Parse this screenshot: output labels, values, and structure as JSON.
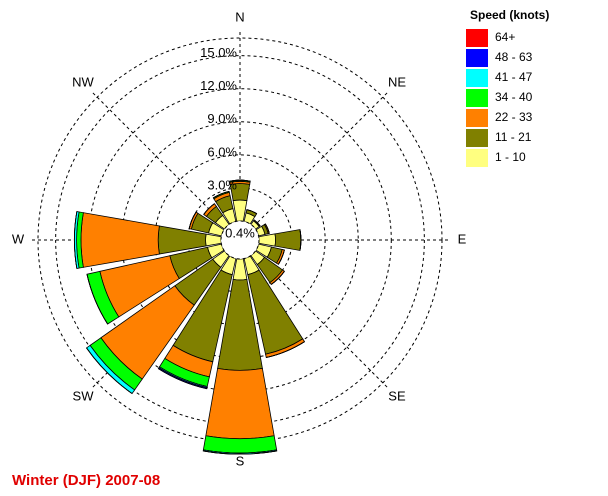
{
  "chart_data": {
    "type": "windrose",
    "title": "Winter (DJF) 2007-08",
    "legend_title": "Speed (knots)",
    "directions": [
      "N",
      "NNE",
      "NE",
      "ENE",
      "E",
      "ESE",
      "SE",
      "SSE",
      "S",
      "SSW",
      "SW",
      "WSW",
      "W",
      "WNW",
      "NW",
      "NNW"
    ],
    "direction_labels": [
      "N",
      "NE",
      "E",
      "SE",
      "S",
      "SW",
      "W",
      "NW"
    ],
    "calm": {
      "value": 0.4,
      "label": "0.4%"
    },
    "rlim": [
      0,
      16.6
    ],
    "rticks": [
      {
        "value": 3,
        "label": "3.0%"
      },
      {
        "value": 6,
        "label": "6.0%"
      },
      {
        "value": 9,
        "label": "9.0%"
      },
      {
        "value": 12,
        "label": "12.0%"
      },
      {
        "value": 15,
        "label": "15.0%"
      }
    ],
    "grid": true,
    "series": [
      {
        "name": "1 - 10",
        "color": "#ffff80",
        "values": [
          1.9,
          0.8,
          0.4,
          0.6,
          1.5,
          1.2,
          1.0,
          1.5,
          1.9,
          1.5,
          1.3,
          1.3,
          1.4,
          1.2,
          1.0,
          1.2
        ]
      },
      {
        "name": "11 - 21",
        "color": "#808000",
        "values": [
          1.5,
          0.3,
          0.1,
          0.3,
          2.3,
          1.0,
          2.0,
          7.4,
          8.2,
          8.1,
          4.2,
          3.5,
          4.3,
          1.6,
          1.0,
          1.2
        ]
      },
      {
        "name": "22 - 33",
        "color": "#ff8000",
        "values": [
          0.2,
          0,
          0,
          0.1,
          0,
          0.2,
          0.2,
          0.3,
          6.2,
          1.4,
          8.2,
          6.5,
          7.0,
          0.2,
          0.3,
          0.3
        ]
      },
      {
        "name": "34 - 40",
        "color": "#00ff00",
        "values": [
          0.1,
          0,
          0,
          0,
          0,
          0,
          0,
          0,
          1.3,
          0.9,
          1.2,
          1.2,
          0.4,
          0,
          0,
          0.1
        ]
      },
      {
        "name": "41 - 47",
        "color": "#00ffff",
        "values": [
          0,
          0,
          0,
          0,
          0,
          0,
          0,
          0,
          0.1,
          0.1,
          0.4,
          0,
          0.2,
          0,
          0,
          0
        ]
      },
      {
        "name": "48 - 63",
        "color": "#0000ff",
        "values": [
          0,
          0,
          0,
          0,
          0,
          0,
          0,
          0,
          0,
          0.1,
          0,
          0,
          0,
          0,
          0,
          0
        ]
      },
      {
        "name": "64+",
        "color": "#ff0000",
        "values": [
          0,
          0,
          0,
          0,
          0,
          0,
          0,
          0,
          0,
          0,
          0,
          0,
          0,
          0,
          0,
          0
        ]
      }
    ]
  }
}
